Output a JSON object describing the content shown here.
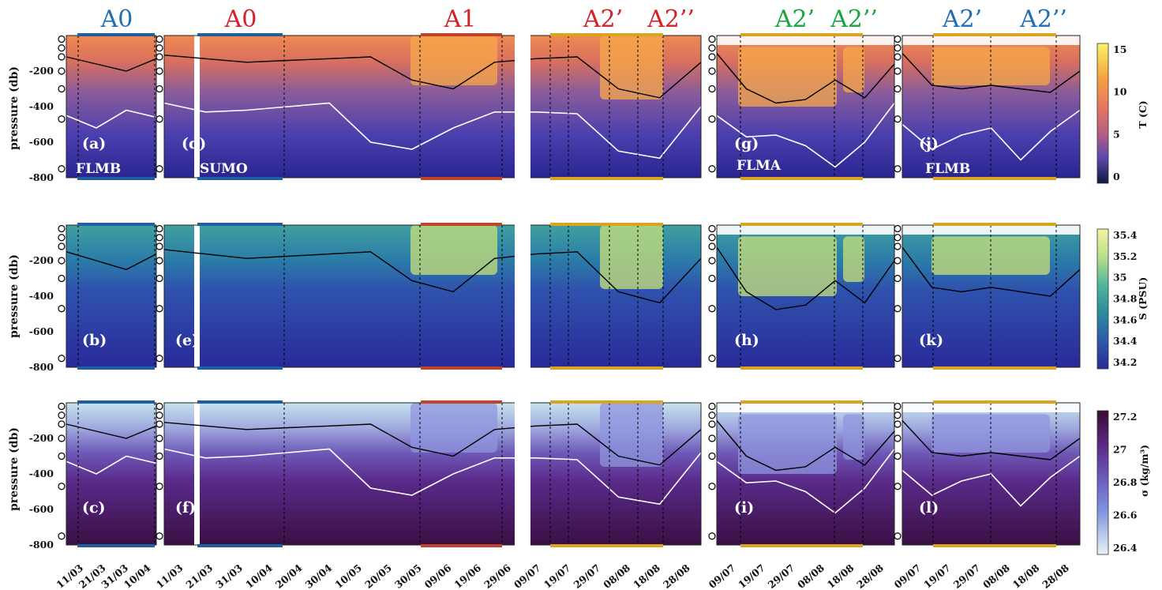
{
  "colors": {
    "A0": "#1f6fb5",
    "A1": "#d3222a",
    "A2_red": "#d3222a",
    "A2_green": "#19a540",
    "A2_blue": "#1f6fb5",
    "bar_blue": "#1f5fa0",
    "bar_red": "#c0432a",
    "bar_yellow": "#d9a520"
  },
  "segment_labels": [
    {
      "text": "A0",
      "color": "A0"
    },
    {
      "text": "A0",
      "color": "A1"
    },
    {
      "text": "A1",
      "color": "A1"
    },
    {
      "text": "A2’",
      "color": "A2_red"
    },
    {
      "text": "A2’’",
      "color": "A2_red"
    },
    {
      "text": "A2’",
      "color": "A2_green"
    },
    {
      "text": "A2’’",
      "color": "A2_green"
    },
    {
      "text": "A2’",
      "color": "A2_blue"
    },
    {
      "text": "A2’’",
      "color": "A2_blue"
    }
  ],
  "y_axis": {
    "label": "pressure (db)",
    "ticks": [
      "-200",
      "-400",
      "-600",
      "-800"
    ]
  },
  "panels": [
    "(a)",
    "(d)",
    "(g)",
    "(j)",
    "(b)",
    "(e)",
    "(h)",
    "(k)",
    "(c)",
    "(f)",
    "(i)",
    "(l)"
  ],
  "moorings": [
    "FLMB",
    "SUMO",
    "FLMA",
    "FLMB"
  ],
  "x_ticks": {
    "col1": [
      "11/03",
      "21/03",
      "31/03",
      "10/04"
    ],
    "col2": [
      "11/03",
      "21/03",
      "31/03",
      "10/04",
      "20/04",
      "30/04",
      "10/05",
      "20/05",
      "30/05",
      "09/06",
      "19/06",
      "29/06",
      "09/07",
      "19/07",
      "29/07",
      "08/08",
      "18/08",
      "28/08"
    ],
    "col3": [
      "09/07",
      "19/07",
      "29/07",
      "08/08",
      "18/08",
      "28/08"
    ],
    "col4": [
      "09/07",
      "19/07",
      "29/07",
      "08/08",
      "18/08",
      "28/08"
    ]
  },
  "colorbars": [
    {
      "label": "T (C)",
      "ticks": [
        "15",
        "10",
        "5",
        "0"
      ]
    },
    {
      "label": "S (PSU)",
      "ticks": [
        "35.4",
        "35.2",
        "35",
        "34.8",
        "34.6",
        "34.4",
        "34.2"
      ]
    },
    {
      "label": "σ (kg/m³)",
      "ticks": [
        "27.2",
        "27",
        "26.8",
        "26.6",
        "26.4"
      ]
    }
  ],
  "chart_data": {
    "type": "heatmap",
    "variables": [
      "T (C)",
      "S (PSU)",
      "σ (kg/m³)"
    ],
    "ylabel": "pressure (db)",
    "ylim": [
      -800,
      0
    ],
    "clim": {
      "T": [
        0,
        16
      ],
      "S": [
        34.1,
        35.5
      ],
      "sigma": [
        26.35,
        27.3
      ]
    },
    "moorings": [
      "FLMB",
      "SUMO",
      "FLMA",
      "FLMB"
    ],
    "white_contour_depth_T": {
      "FLMB_spring": [
        -450,
        -520,
        -420,
        -460
      ],
      "SUMO": [
        -380,
        -430,
        -420,
        -400,
        -380,
        -600,
        -640,
        -520,
        -430,
        -430,
        -440,
        -650,
        -690,
        -400
      ],
      "FLMA": [
        -450,
        -570,
        -560,
        -620,
        -740,
        -600,
        -380
      ],
      "FLMB_summer": [
        -500,
        -640,
        -560,
        -520,
        -700,
        -540,
        -420
      ]
    }
  }
}
